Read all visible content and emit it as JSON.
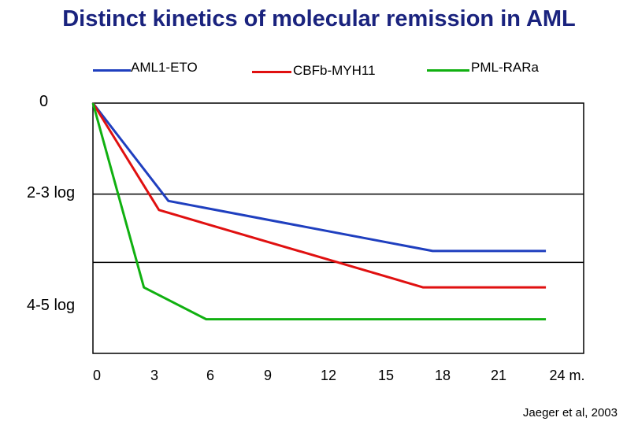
{
  "chart_data": {
    "type": "line",
    "title": "Distinct kinetics of molecular remission in AML",
    "xlabel": "",
    "ylabel": "",
    "x_tick_labels": [
      "0",
      "3",
      "6",
      "9",
      "12",
      "15",
      "18",
      "21",
      "24 m."
    ],
    "x_ticks": [
      0,
      3,
      6,
      9,
      12,
      15,
      18,
      21,
      24
    ],
    "xlim": [
      0,
      26
    ],
    "y_tick_labels": [
      "0",
      "2-3 log",
      "4-5 log"
    ],
    "ylim": [
      0,
      5.5
    ],
    "y_note": "y = log reduction (0 at top, increasing downward)",
    "series": [
      {
        "name": "AML1-ETO",
        "color": "#1f3fbf",
        "x": [
          0,
          4,
          18,
          24
        ],
        "y": [
          0,
          2.15,
          3.25,
          3.25
        ]
      },
      {
        "name": "CBFb-MYH11",
        "color": "#e01010",
        "x": [
          0,
          3.5,
          17.5,
          24
        ],
        "y": [
          0,
          2.35,
          4.05,
          4.05
        ]
      },
      {
        "name": "PML-RARa",
        "color": "#10b010",
        "x": [
          0,
          2.7,
          6,
          24
        ],
        "y": [
          0,
          4.05,
          4.75,
          4.75
        ]
      }
    ],
    "gridlines": [
      2.0,
      3.5
    ],
    "legend_position": "top",
    "source": "Jaeger et al, 2003"
  }
}
